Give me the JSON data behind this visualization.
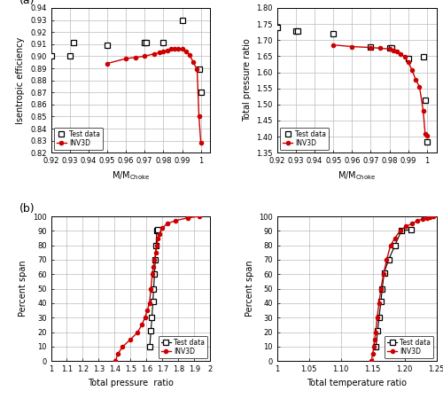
{
  "ax1": {
    "ylabel": "Isentropic efficiency",
    "xlabel": "M/M$_{\\rm Choke}$",
    "xlim": [
      0.92,
      1.005
    ],
    "ylim": [
      0.82,
      0.94
    ],
    "xticks": [
      0.92,
      0.93,
      0.94,
      0.95,
      0.96,
      0.97,
      0.98,
      0.99,
      1.0
    ],
    "xticklabels": [
      "0.92",
      "0.93",
      "0.94",
      "0.95",
      "0.96",
      "0.97",
      "0.98",
      "0.99",
      "1"
    ],
    "yticks": [
      0.82,
      0.83,
      0.84,
      0.85,
      0.86,
      0.87,
      0.88,
      0.89,
      0.9,
      0.91,
      0.92,
      0.93,
      0.94
    ],
    "test_x": [
      0.92,
      0.93,
      0.932,
      0.95,
      0.97,
      0.971,
      0.98,
      0.99,
      0.999,
      1.0
    ],
    "test_y": [
      0.9,
      0.9,
      0.911,
      0.909,
      0.911,
      0.911,
      0.911,
      0.93,
      0.889,
      0.87
    ],
    "inv_x": [
      0.95,
      0.96,
      0.965,
      0.97,
      0.975,
      0.978,
      0.98,
      0.982,
      0.984,
      0.986,
      0.988,
      0.99,
      0.992,
      0.994,
      0.996,
      0.998,
      0.999,
      1.0
    ],
    "inv_y": [
      0.894,
      0.898,
      0.899,
      0.9,
      0.902,
      0.903,
      0.904,
      0.905,
      0.906,
      0.906,
      0.906,
      0.906,
      0.904,
      0.901,
      0.895,
      0.889,
      0.85,
      0.828
    ],
    "legend_loc": "lower left"
  },
  "ax2": {
    "ylabel": "Total pressure ratio",
    "xlabel": "M/M$_{\\rm Choke}$",
    "xlim": [
      0.92,
      1.005
    ],
    "ylim": [
      1.35,
      1.8
    ],
    "xticks": [
      0.92,
      0.93,
      0.94,
      0.95,
      0.96,
      0.97,
      0.98,
      0.99,
      1.0
    ],
    "xticklabels": [
      "0.92",
      "0.93",
      "0.94",
      "0.95",
      "0.96",
      "0.97",
      "0.98",
      "0.99",
      "1"
    ],
    "yticks": [
      1.35,
      1.4,
      1.45,
      1.5,
      1.55,
      1.6,
      1.65,
      1.7,
      1.75,
      1.8
    ],
    "test_x": [
      0.92,
      0.93,
      0.931,
      0.95,
      0.97,
      0.98,
      0.981,
      0.99,
      0.998,
      0.999,
      1.0
    ],
    "test_y": [
      1.74,
      1.727,
      1.727,
      1.72,
      1.68,
      1.675,
      1.675,
      1.643,
      1.648,
      1.512,
      1.385
    ],
    "inv_x": [
      0.95,
      0.96,
      0.97,
      0.975,
      0.98,
      0.982,
      0.984,
      0.986,
      0.988,
      0.99,
      0.992,
      0.994,
      0.996,
      0.998,
      0.999,
      1.0
    ],
    "inv_y": [
      1.685,
      1.68,
      1.677,
      1.675,
      1.672,
      1.669,
      1.665,
      1.658,
      1.648,
      1.632,
      1.607,
      1.577,
      1.555,
      1.48,
      1.408,
      1.402
    ],
    "legend_loc": "lower left"
  },
  "ax3": {
    "xlabel": "Total pressure  ratio",
    "ylabel": "Percent span",
    "xlim": [
      1.0,
      2.0
    ],
    "ylim": [
      0,
      100
    ],
    "xticks": [
      1.0,
      1.1,
      1.2,
      1.3,
      1.4,
      1.5,
      1.6,
      1.7,
      1.8,
      1.9,
      2.0
    ],
    "xticklabels": [
      "1",
      "1.1",
      "1.2",
      "1.3",
      "1.4",
      "1.5",
      "1.6",
      "1.7",
      "1.8",
      "1.9",
      "2"
    ],
    "yticks": [
      0,
      10,
      20,
      30,
      40,
      50,
      60,
      70,
      80,
      90,
      100
    ],
    "test_x": [
      1.62,
      1.628,
      1.634,
      1.64,
      1.645,
      1.65,
      1.655,
      1.66,
      1.665,
      1.67
    ],
    "test_y": [
      10,
      21,
      30,
      41,
      50,
      60,
      70,
      80,
      90,
      91
    ],
    "inv_x": [
      1.405,
      1.42,
      1.45,
      1.5,
      1.545,
      1.57,
      1.59,
      1.605,
      1.618,
      1.628,
      1.636,
      1.643,
      1.65,
      1.658,
      1.665,
      1.672,
      1.68,
      1.7,
      1.73,
      1.78,
      1.86,
      1.93
    ],
    "inv_y": [
      0,
      5,
      10,
      15,
      20,
      25,
      30,
      35,
      40,
      50,
      60,
      65,
      70,
      75,
      80,
      85,
      88,
      92,
      95,
      97,
      99,
      100
    ],
    "legend_loc": "lower right"
  },
  "ax4": {
    "xlabel": "Total temperature ratio",
    "ylabel": "Percent span",
    "xlim": [
      1.0,
      1.25
    ],
    "ylim": [
      0,
      100
    ],
    "xticks": [
      1.0,
      1.05,
      1.1,
      1.15,
      1.2,
      1.25
    ],
    "xticklabels": [
      "1",
      "1.05",
      "1.10",
      "1.15",
      "1.20",
      "1.25"
    ],
    "yticks": [
      0,
      10,
      20,
      30,
      40,
      50,
      60,
      70,
      80,
      90,
      100
    ],
    "test_x": [
      1.155,
      1.158,
      1.16,
      1.163,
      1.165,
      1.168,
      1.175,
      1.185,
      1.195,
      1.21
    ],
    "test_y": [
      10,
      21,
      30,
      41,
      50,
      61,
      70,
      80,
      90,
      91
    ],
    "inv_x": [
      1.148,
      1.15,
      1.152,
      1.153,
      1.155,
      1.157,
      1.16,
      1.163,
      1.167,
      1.172,
      1.178,
      1.185,
      1.193,
      1.202,
      1.212,
      1.22,
      1.228,
      1.235,
      1.24,
      1.245
    ],
    "inv_y": [
      0,
      5,
      10,
      15,
      20,
      30,
      40,
      50,
      60,
      70,
      80,
      85,
      90,
      93,
      95,
      97,
      98,
      99,
      99.5,
      100
    ],
    "legend_loc": "lower right"
  },
  "label_a": "(a)",
  "label_b": "(b)",
  "test_color": "black",
  "inv_color": "#cc0000",
  "legend_test": "Test data",
  "legend_inv": "INV3D",
  "grid_color": "#bbbbbb",
  "bg_color": "white"
}
